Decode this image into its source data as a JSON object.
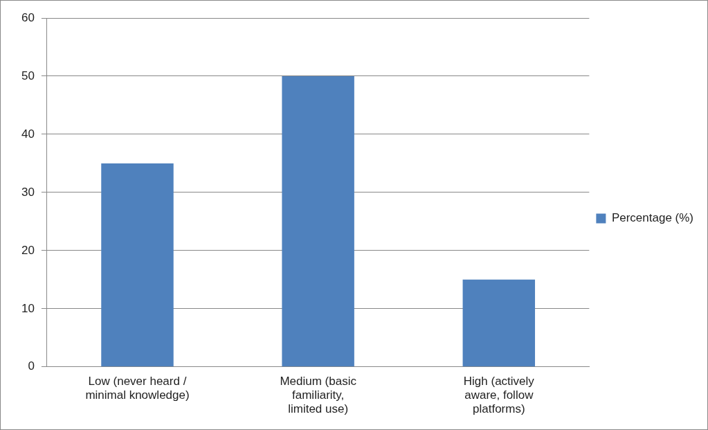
{
  "chart_data": {
    "type": "bar",
    "categories": [
      "Low (never heard / minimal knowledge)",
      "Medium (basic familiarity, limited use)",
      "High (actively aware, follow platforms)"
    ],
    "series": [
      {
        "name": "Percentage (%)",
        "color": "#4f81bd",
        "values": [
          35,
          50,
          15
        ]
      }
    ],
    "ylim": [
      0,
      60
    ],
    "yticks": [
      0,
      10,
      20,
      30,
      40,
      50,
      60
    ],
    "grid": "y",
    "legend": "right"
  }
}
